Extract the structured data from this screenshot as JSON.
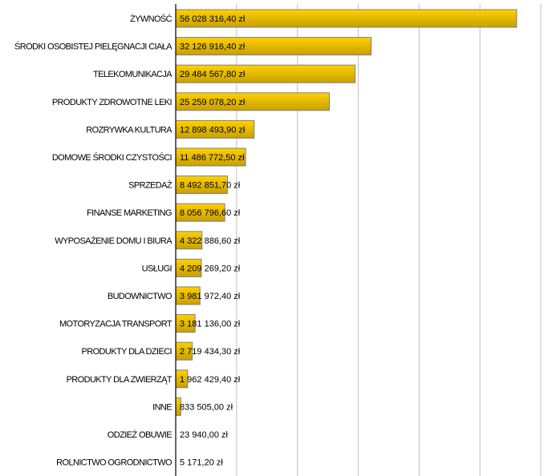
{
  "chart_data": {
    "type": "bar",
    "orientation": "horizontal",
    "categories": [
      "ŻYWNOŚĆ",
      "ŚRODKI OSOBISTEJ PIELĘGNACJI CIAŁA",
      "TELEKOMUNIKACJA",
      "PRODUKTY ZDROWOTNE LEKI",
      "ROZRYWKA KULTURA",
      "DOMOWE ŚRODKI CZYSTOŚCI",
      "SPRZEDAŻ",
      "FINANSE MARKETING",
      "WYPOSAŻENIE DOMU I BIURA",
      "USŁUGI",
      "BUDOWNICTWO",
      "MOTORYZACJA TRANSPORT",
      "PRODUKTY DLA DZIECI",
      "PRODUKTY DLA ZWIERZĄT",
      "INNE",
      "ODZIEŻ OBUWIE",
      "ROLNICTWO OGRODNICTWO"
    ],
    "values": [
      56028316.4,
      32126916.4,
      29484567.8,
      25259078.2,
      12898493.9,
      11486772.5,
      8492851.7,
      8056796.6,
      4322886.6,
      4209269.2,
      3981972.4,
      3181136.0,
      2719434.3,
      1962429.4,
      833505.0,
      23940.0,
      5171.2
    ],
    "data_labels": [
      "56 028 316,40 zł",
      "32 126 916,40 zł",
      "29 484 567,80 zł",
      "25 259 078,20 zł",
      "12 898 493,90 zł",
      "11 486 772,50 zł",
      "8 492 851,70 zł",
      "8 056 796,60 zł",
      "4 322 886,60 zł",
      "4 209 269,20 zł",
      "3 981 972,40 zł",
      "3 181 136,00 zł",
      "2 719 434,30 zł",
      "1 962 429,40 zł",
      "833 505,00 zł",
      "23 940,00 zł",
      "5 171,20 zł"
    ],
    "xlim": [
      0,
      60000000
    ],
    "grid": true,
    "grid_step": 10000000,
    "colors": {
      "bar_top": "#ffd000",
      "bar_bottom": "#c8a000",
      "bar_border": "#808080",
      "grid": "#c0c0c0",
      "axis": "#000000"
    }
  }
}
